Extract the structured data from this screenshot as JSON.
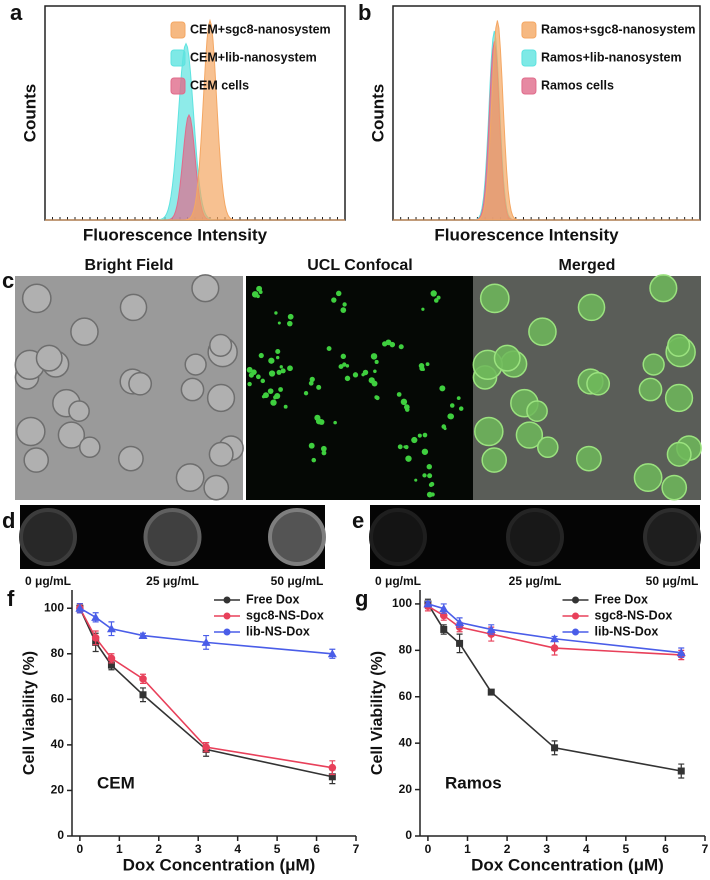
{
  "chart_data": [
    {
      "type": "density",
      "label": "a",
      "xlabel": "Fluorescence Intensity",
      "ylabel": "Counts",
      "series": [
        {
          "name": "CEM+sgc8-nanosystem",
          "color": "#f4a763"
        },
        {
          "name": "CEM+lib-nanosystem",
          "color": "#5ee3e0"
        },
        {
          "name": "CEM cells",
          "color": "#e06b8b"
        }
      ]
    },
    {
      "type": "density",
      "label": "b",
      "xlabel": "Fluorescence Intensity",
      "ylabel": "Counts",
      "series": [
        {
          "name": "Ramos+sgc8-nanosystem",
          "color": "#f4a763"
        },
        {
          "name": "Ramos+lib-nanosystem",
          "color": "#5ee3e0"
        },
        {
          "name": "Ramos cells",
          "color": "#e06b8b"
        }
      ]
    },
    {
      "type": "line",
      "label": "f",
      "annotation": "CEM",
      "xlabel": "Dox Concentration (μM)",
      "ylabel": "Cell Viability (%)",
      "x": [
        0,
        0.4,
        0.8,
        1.6,
        3.2,
        6.4
      ],
      "xlim": [
        -0.2,
        7
      ],
      "xticks": [
        0,
        1,
        2,
        3,
        4,
        5,
        6,
        7
      ],
      "ylim": [
        0,
        108
      ],
      "yticks": [
        0,
        20,
        40,
        60,
        80,
        100
      ],
      "series": [
        {
          "name": "Free Dox",
          "color": "#333333",
          "marker": "square",
          "values": [
            100,
            85,
            75,
            62,
            38,
            26
          ],
          "errors": [
            2,
            4,
            2,
            3,
            3,
            3
          ]
        },
        {
          "name": "sgc8-NS-Dox",
          "color": "#e8405a",
          "marker": "circle",
          "values": [
            100,
            87,
            78,
            69,
            39,
            30
          ],
          "errors": [
            2,
            3,
            2,
            2,
            2,
            3
          ]
        },
        {
          "name": "lib-NS-Dox",
          "color": "#4a5de8",
          "marker": "triangle",
          "values": [
            100,
            96,
            91,
            88,
            85,
            80
          ],
          "errors": [
            2,
            2,
            3,
            1,
            3,
            2
          ]
        }
      ]
    },
    {
      "type": "line",
      "label": "g",
      "annotation": "Ramos",
      "xlabel": "Dox Concentration (μM)",
      "ylabel": "Cell Viability (%)",
      "x": [
        0,
        0.4,
        0.8,
        1.6,
        3.2,
        6.4
      ],
      "xlim": [
        -0.2,
        7
      ],
      "xticks": [
        0,
        1,
        2,
        3,
        4,
        5,
        6,
        7
      ],
      "ylim": [
        0,
        106
      ],
      "yticks": [
        0,
        20,
        40,
        60,
        80,
        100
      ],
      "series": [
        {
          "name": "Free Dox",
          "color": "#333333",
          "marker": "square",
          "values": [
            100,
            89,
            83,
            62,
            38,
            28
          ],
          "errors": [
            2,
            2,
            4,
            1,
            3,
            3
          ]
        },
        {
          "name": "sgc8-NS-Dox",
          "color": "#e8405a",
          "marker": "circle",
          "values": [
            99,
            95,
            90,
            87,
            81,
            78
          ],
          "errors": [
            2,
            2,
            2,
            3,
            3,
            2
          ]
        },
        {
          "name": "lib-NS-Dox",
          "color": "#4a5de8",
          "marker": "triangle",
          "values": [
            100,
            98,
            92,
            89,
            85,
            79
          ],
          "errors": [
            1,
            2,
            2,
            2,
            1,
            2
          ]
        }
      ]
    }
  ],
  "panel_c": {
    "label": "c",
    "titles": [
      "Bright Field",
      "UCL Confocal",
      "Merged"
    ]
  },
  "panel_d": {
    "label": "d",
    "concentrations": [
      "0 μg/mL",
      "25 μg/mL",
      "50 μg/mL"
    ]
  },
  "panel_e": {
    "label": "e",
    "concentrations": [
      "0 μg/mL",
      "25 μg/mL",
      "50 μg/mL"
    ]
  }
}
